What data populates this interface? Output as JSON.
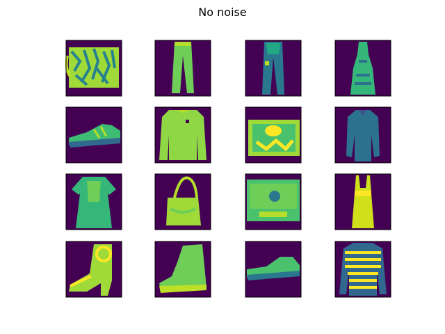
{
  "title": "No noise"
}
